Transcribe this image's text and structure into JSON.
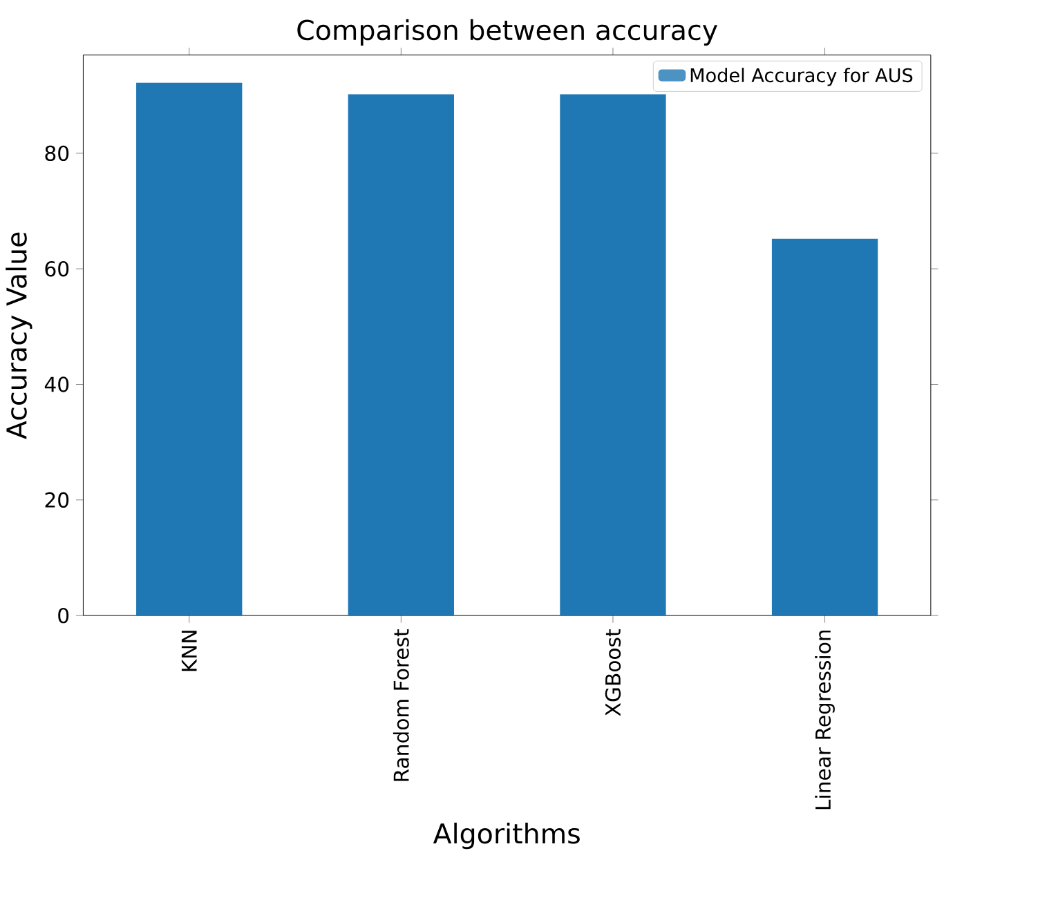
{
  "chart_data": {
    "type": "bar",
    "title": "Comparison between accuracy",
    "xlabel": "Algorithms",
    "ylabel": "Accuracy Value",
    "categories": [
      "KNN",
      "Random Forest",
      "XGBoost",
      "Linear Regression"
    ],
    "series": [
      {
        "name": "Model Accuracy for AUS",
        "color": "#1f77b4",
        "values": [
          92.2,
          90.2,
          90.2,
          65.2
        ]
      }
    ],
    "ylim": [
      0,
      97
    ],
    "yticks": [
      0,
      20,
      40,
      60,
      80
    ],
    "legend": "top right",
    "grid": false
  }
}
